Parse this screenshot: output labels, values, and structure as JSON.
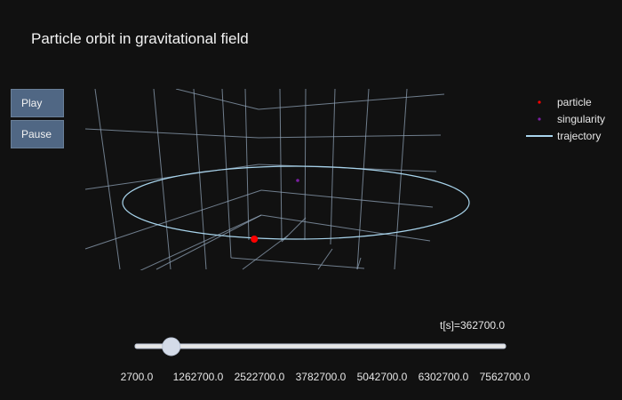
{
  "chart_data": {
    "type": "scatter",
    "title": "Particle orbit in gravitational field",
    "legend": {
      "placement": "top-right",
      "entries": [
        {
          "name": "particle",
          "color": "#ff0000",
          "marker": "dot"
        },
        {
          "name": "singularity",
          "color": "#7a1fa2",
          "marker": "dot"
        },
        {
          "name": "trajectory",
          "color": "#a8d4ec",
          "marker": "line"
        }
      ]
    },
    "series": [
      {
        "name": "singularity",
        "x": [
          0
        ],
        "y": [
          0
        ],
        "z": [
          0
        ]
      },
      {
        "name": "particle",
        "x": [
          0
        ],
        "y": [
          -1
        ],
        "z": [
          0
        ]
      }
    ],
    "trajectory": {
      "shape": "ellipse",
      "center_x": 0,
      "center_y": 0
    }
  },
  "controls": {
    "play_label": "Play",
    "pause_label": "Pause"
  },
  "slider": {
    "current_label": "t[s]=362700.0",
    "current_value": 362700.0,
    "min": 2700.0,
    "max": 7562700.0,
    "ticks": [
      "2700.0",
      "1262700.0",
      "2522700.0",
      "3782700.0",
      "5042700.0",
      "6302700.0",
      "7562700.0"
    ]
  }
}
